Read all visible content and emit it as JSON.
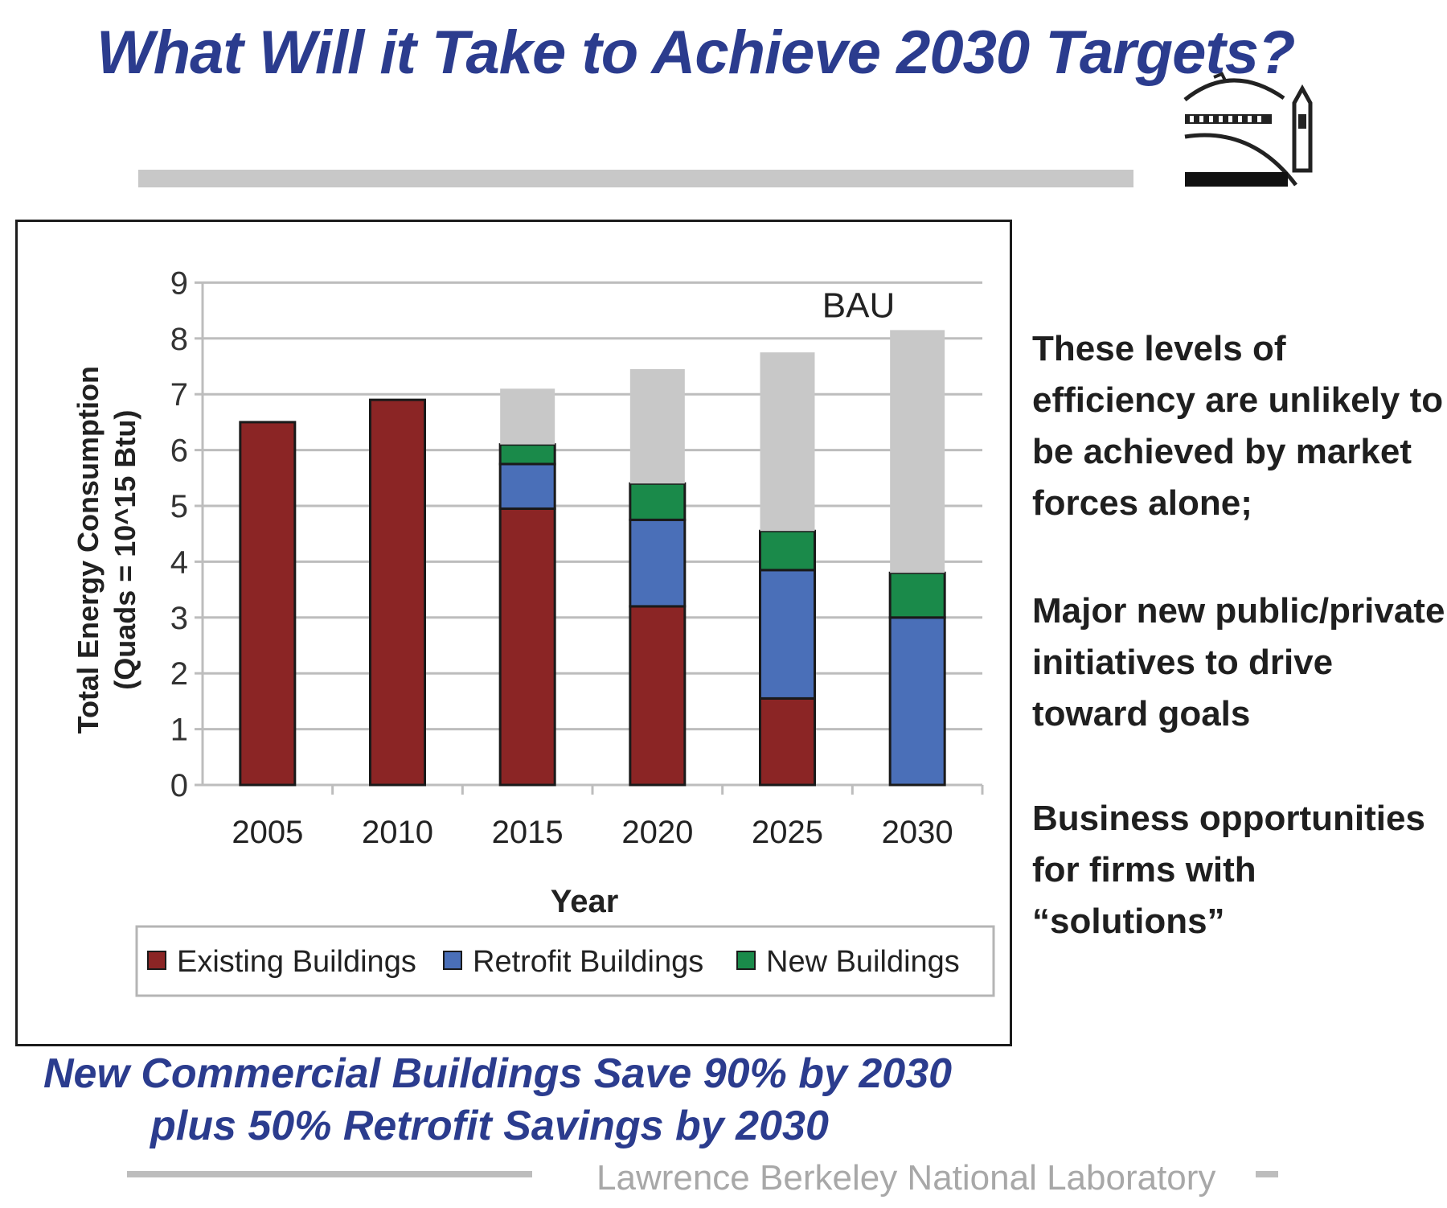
{
  "title": "What Will it Take to Achieve 2030 Targets?",
  "colors": {
    "title": "#2b3c8e",
    "existing": "#8b2525",
    "retrofit": "#4a6fb8",
    "new": "#1a8a4a",
    "bau": "#c8c8c8"
  },
  "chart_data": {
    "type": "bar",
    "stacked": true,
    "categories": [
      "2005",
      "2010",
      "2015",
      "2020",
      "2025",
      "2030"
    ],
    "series": [
      {
        "name": "Existing Buildings",
        "values": [
          6.5,
          6.9,
          4.95,
          3.2,
          1.55,
          0
        ]
      },
      {
        "name": "Retrofit Buildings",
        "values": [
          0,
          0,
          0.8,
          1.55,
          2.3,
          3.0
        ]
      },
      {
        "name": "New Buildings",
        "values": [
          0,
          0,
          0.35,
          0.65,
          0.7,
          0.8
        ]
      },
      {
        "values": [
          0,
          0,
          1.0,
          2.05,
          3.2,
          4.35
        ]
      }
    ],
    "bau_label": "BAU",
    "ylabel": "Total Energy Consumption",
    "ylabel2": "(Quads = 10^15 Btu)",
    "xlabel": "Year",
    "ylim": [
      0,
      9
    ],
    "yticks": [
      "0",
      "1",
      "2",
      "3",
      "4",
      "5",
      "6",
      "7",
      "8",
      "9"
    ],
    "grid": true,
    "legend_position": "bottom"
  },
  "side_notes": [
    {
      "lines": [
        "These levels of",
        "efficiency are unlikely to",
        "be achieved by market",
        "forces alone;"
      ]
    },
    {
      "lines": [
        "Major new public/private",
        "initiatives to drive",
        "toward goals"
      ]
    },
    {
      "lines": [
        "Business opportunities",
        "for firms with",
        "“solutions”"
      ]
    }
  ],
  "caption": {
    "line1": "New Commercial Buildings Save 90% by 2030",
    "line2": "plus 50% Retrofit Savings by 2030"
  },
  "footer": "Lawrence Berkeley National Laboratory"
}
